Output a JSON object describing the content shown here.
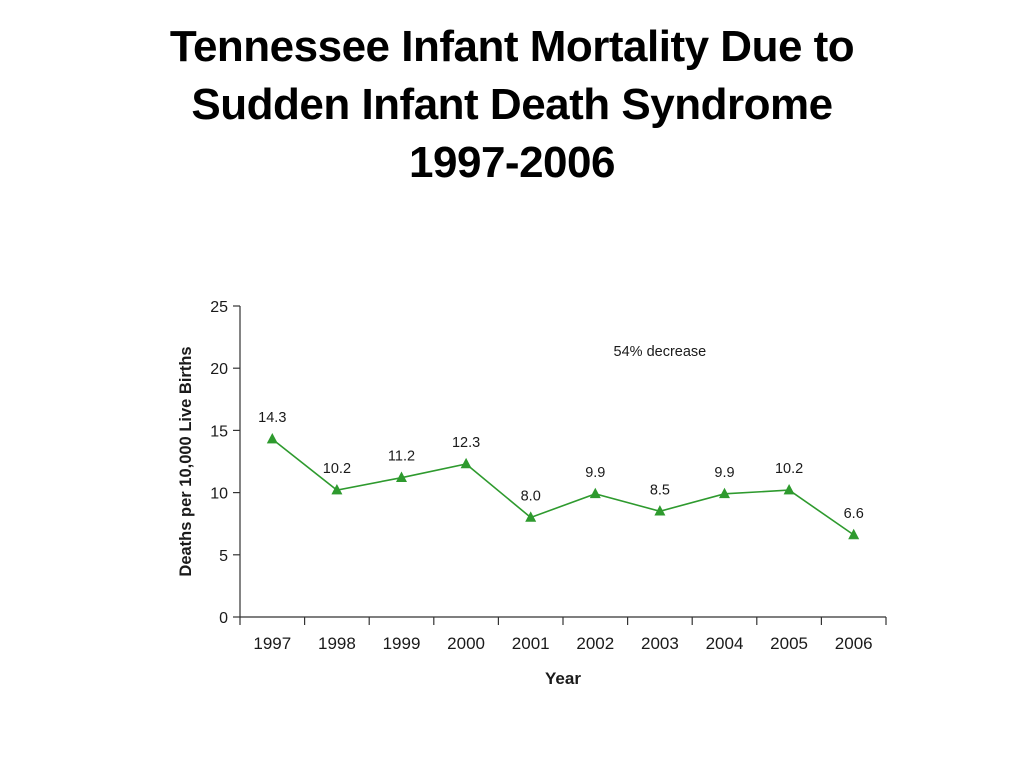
{
  "slide": {
    "title_lines": [
      "Tennessee Infant Mortality Due to",
      "Sudden Infant Death Syndrome",
      "1997-2006"
    ]
  },
  "colors": {
    "series": "#2e9a2e",
    "axis": "#333333",
    "text": "#1a1a1a"
  },
  "chart_data": {
    "type": "line",
    "title": "",
    "xlabel": "Year",
    "ylabel": "Deaths per 10,000 Live Births",
    "categories": [
      "1997",
      "1998",
      "1999",
      "2000",
      "2001",
      "2002",
      "2003",
      "2004",
      "2005",
      "2006"
    ],
    "series": [
      {
        "values": [
          14.3,
          10.2,
          11.2,
          12.3,
          8.0,
          9.9,
          8.5,
          9.9,
          10.2,
          6.6
        ],
        "data_labels": [
          "14.3",
          "10.2",
          "11.2",
          "12.3",
          "8.0",
          "9.9",
          "8.5",
          "9.9",
          "10.2",
          "6.6"
        ],
        "marker": "triangle"
      }
    ],
    "ylim": [
      0,
      25
    ],
    "yticks": [
      0,
      5,
      10,
      15,
      20,
      25
    ],
    "grid": false,
    "legend": "none",
    "annotations": [
      {
        "text": "54% decrease",
        "x": "2003",
        "y": 21
      }
    ]
  }
}
